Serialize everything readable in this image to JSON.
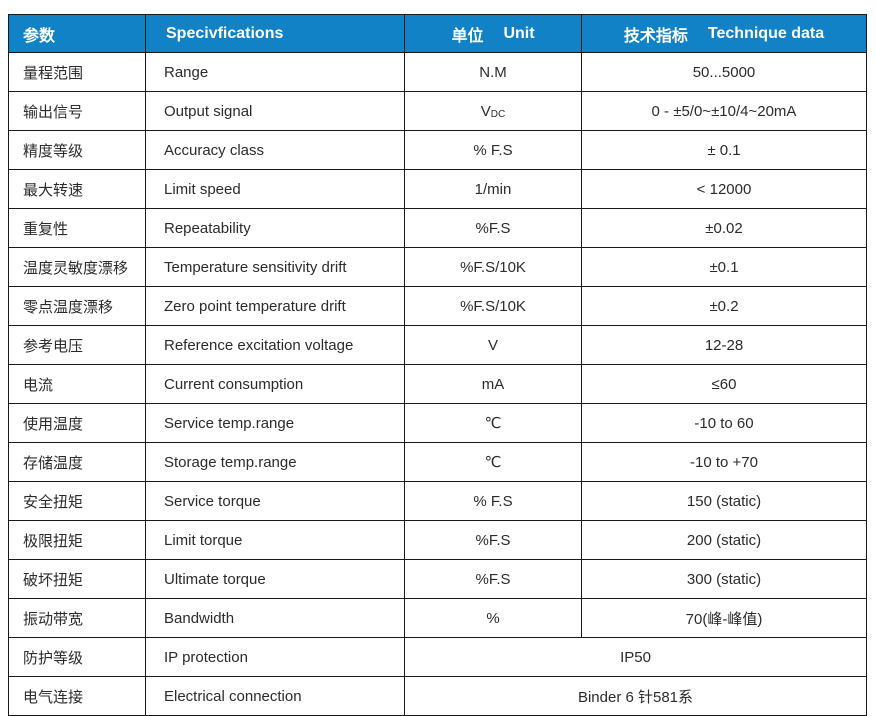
{
  "colors": {
    "header_bg": "#1182C5",
    "header_text": "#FFFFFF",
    "border": "#1A1A1A",
    "text": "#2B2B2B"
  },
  "header": {
    "param_cn": "参数",
    "param_en": "Specivfications",
    "unit_cn": "单位",
    "unit_en": "Unit",
    "data_cn": "技术指标",
    "data_en": "Technique data"
  },
  "rows": [
    {
      "cn": "量程范围",
      "en": "Range",
      "unit": "N.M",
      "value": "50...5000"
    },
    {
      "cn": "输出信号",
      "en": "Output signal",
      "unit": "V",
      "unit_sub": "DC",
      "value": "0 - ±5/0~±10/4~20mA"
    },
    {
      "cn": "精度等级",
      "en": "Accuracy class",
      "unit": "% F.S",
      "value": "± 0.1"
    },
    {
      "cn": "最大转速",
      "en": "Limit speed",
      "unit": "1/min",
      "value": "< 12000"
    },
    {
      "cn": "重复性",
      "en": "Repeatability",
      "unit": "%F.S",
      "value": "±0.02"
    },
    {
      "cn": "温度灵敏度漂移",
      "en": "Temperature sensitivity drift",
      "unit": "%F.S/10K",
      "value": "±0.1"
    },
    {
      "cn": "零点温度漂移",
      "en": "Zero point temperature drift",
      "unit": "%F.S/10K",
      "value": "±0.2"
    },
    {
      "cn": "参考电压",
      "en": "Reference excitation voltage",
      "unit": "V",
      "value": "12-28"
    },
    {
      "cn": "电流",
      "en": "Current consumption",
      "unit": "mA",
      "value": "≤60"
    },
    {
      "cn": "使用温度",
      "en": "Service temp.range",
      "unit": "℃",
      "value": "-10 to 60"
    },
    {
      "cn": "存储温度",
      "en": "Storage temp.range",
      "unit": "℃",
      "value": "-10 to +70"
    },
    {
      "cn": "安全扭矩",
      "en": "Service torque",
      "unit": "% F.S",
      "value": "150 (static)"
    },
    {
      "cn": "极限扭矩",
      "en": "Limit torque",
      "unit": "%F.S",
      "value": "200 (static)"
    },
    {
      "cn": "破坏扭矩",
      "en": "Ultimate torque",
      "unit": "%F.S",
      "value": "300 (static)"
    },
    {
      "cn": "振动带宽",
      "en": "Bandwidth",
      "unit": "%",
      "value": "70(峰-峰值)"
    },
    {
      "cn": "防护等级",
      "en": "IP protection",
      "merged": true,
      "value": "IP50"
    },
    {
      "cn": "电气连接",
      "en": "Electrical connection",
      "merged": true,
      "value": "Binder 6 针581系"
    }
  ]
}
